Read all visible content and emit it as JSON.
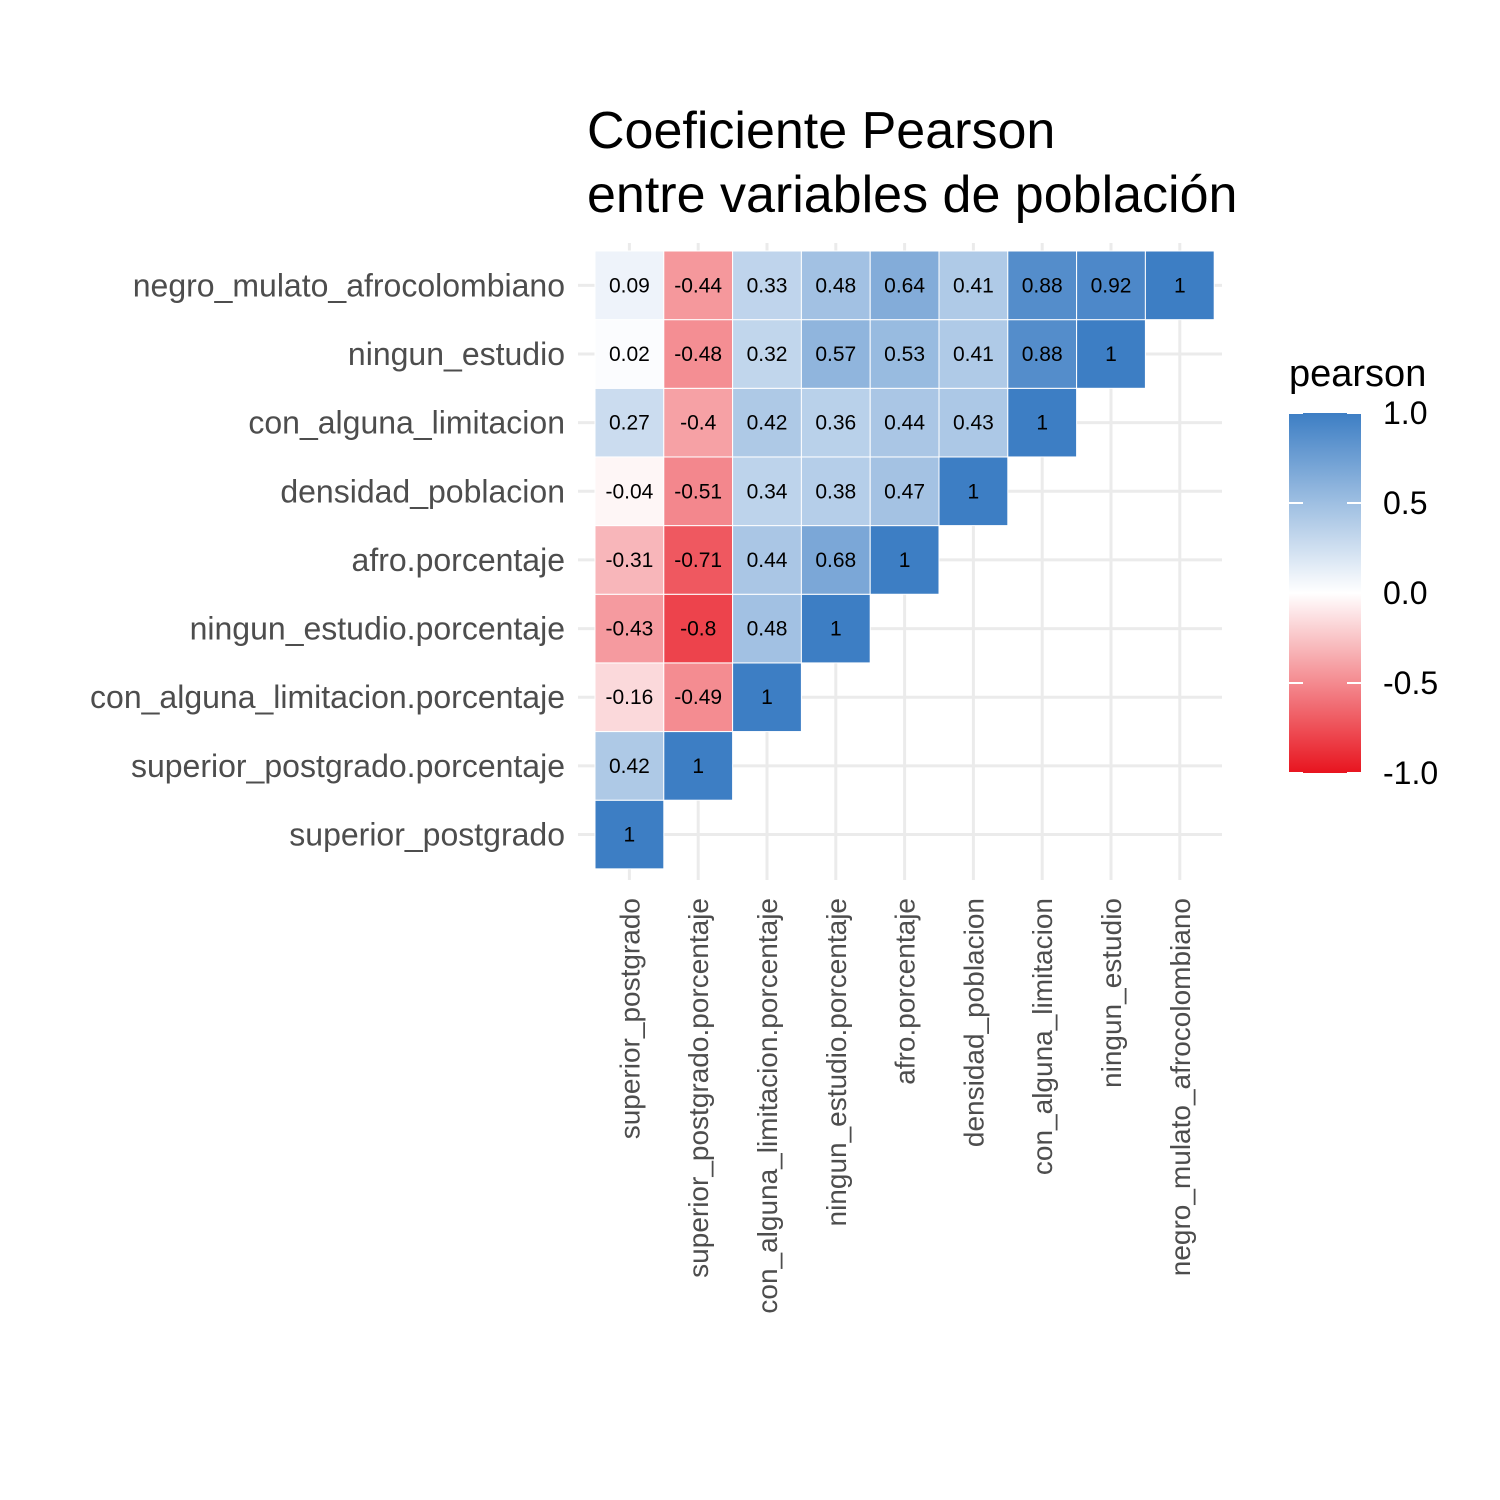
{
  "chart_data": {
    "type": "heatmap",
    "title_lines": [
      "Coeficiente Pearson",
      "entre variables de población"
    ],
    "x_categories": [
      "superior_postgrado",
      "superior_postgrado.porcentaje",
      "con_alguna_limitacion.porcentaje",
      "ningun_estudio.porcentaje",
      "afro.porcentaje",
      "densidad_poblacion",
      "con_alguna_limitacion",
      "ningun_estudio",
      "negro_mulato_afrocolombiano"
    ],
    "y_categories": [
      "superior_postgrado",
      "superior_postgrado.porcentaje",
      "con_alguna_limitacion.porcentaje",
      "ningun_estudio.porcentaje",
      "afro.porcentaje",
      "densidad_poblacion",
      "con_alguna_limitacion",
      "ningun_estudio",
      "negro_mulato_afrocolombiano"
    ],
    "cells": [
      {
        "x": "superior_postgrado",
        "y": "superior_postgrado",
        "value": 1,
        "label": "1"
      },
      {
        "x": "superior_postgrado",
        "y": "superior_postgrado.porcentaje",
        "value": 0.42,
        "label": "0.42"
      },
      {
        "x": "superior_postgrado.porcentaje",
        "y": "superior_postgrado.porcentaje",
        "value": 1,
        "label": "1"
      },
      {
        "x": "superior_postgrado",
        "y": "con_alguna_limitacion.porcentaje",
        "value": -0.16,
        "label": "-0.16"
      },
      {
        "x": "superior_postgrado.porcentaje",
        "y": "con_alguna_limitacion.porcentaje",
        "value": -0.49,
        "label": "-0.49"
      },
      {
        "x": "con_alguna_limitacion.porcentaje",
        "y": "con_alguna_limitacion.porcentaje",
        "value": 1,
        "label": "1"
      },
      {
        "x": "superior_postgrado",
        "y": "ningun_estudio.porcentaje",
        "value": -0.43,
        "label": "-0.43"
      },
      {
        "x": "superior_postgrado.porcentaje",
        "y": "ningun_estudio.porcentaje",
        "value": -0.8,
        "label": "-0.8"
      },
      {
        "x": "con_alguna_limitacion.porcentaje",
        "y": "ningun_estudio.porcentaje",
        "value": 0.48,
        "label": "0.48"
      },
      {
        "x": "ningun_estudio.porcentaje",
        "y": "ningun_estudio.porcentaje",
        "value": 1,
        "label": "1"
      },
      {
        "x": "superior_postgrado",
        "y": "afro.porcentaje",
        "value": -0.31,
        "label": "-0.31"
      },
      {
        "x": "superior_postgrado.porcentaje",
        "y": "afro.porcentaje",
        "value": -0.71,
        "label": "-0.71"
      },
      {
        "x": "con_alguna_limitacion.porcentaje",
        "y": "afro.porcentaje",
        "value": 0.44,
        "label": "0.44"
      },
      {
        "x": "ningun_estudio.porcentaje",
        "y": "afro.porcentaje",
        "value": 0.68,
        "label": "0.68"
      },
      {
        "x": "afro.porcentaje",
        "y": "afro.porcentaje",
        "value": 1,
        "label": "1"
      },
      {
        "x": "superior_postgrado",
        "y": "densidad_poblacion",
        "value": -0.04,
        "label": "-0.04"
      },
      {
        "x": "superior_postgrado.porcentaje",
        "y": "densidad_poblacion",
        "value": -0.51,
        "label": "-0.51"
      },
      {
        "x": "con_alguna_limitacion.porcentaje",
        "y": "densidad_poblacion",
        "value": 0.34,
        "label": "0.34"
      },
      {
        "x": "ningun_estudio.porcentaje",
        "y": "densidad_poblacion",
        "value": 0.38,
        "label": "0.38"
      },
      {
        "x": "afro.porcentaje",
        "y": "densidad_poblacion",
        "value": 0.47,
        "label": "0.47"
      },
      {
        "x": "densidad_poblacion",
        "y": "densidad_poblacion",
        "value": 1,
        "label": "1"
      },
      {
        "x": "superior_postgrado",
        "y": "con_alguna_limitacion",
        "value": 0.27,
        "label": "0.27"
      },
      {
        "x": "superior_postgrado.porcentaje",
        "y": "con_alguna_limitacion",
        "value": -0.4,
        "label": "-0.4"
      },
      {
        "x": "con_alguna_limitacion.porcentaje",
        "y": "con_alguna_limitacion",
        "value": 0.42,
        "label": "0.42"
      },
      {
        "x": "ningun_estudio.porcentaje",
        "y": "con_alguna_limitacion",
        "value": 0.36,
        "label": "0.36"
      },
      {
        "x": "afro.porcentaje",
        "y": "con_alguna_limitacion",
        "value": 0.44,
        "label": "0.44"
      },
      {
        "x": "densidad_poblacion",
        "y": "con_alguna_limitacion",
        "value": 0.43,
        "label": "0.43"
      },
      {
        "x": "con_alguna_limitacion",
        "y": "con_alguna_limitacion",
        "value": 1,
        "label": "1"
      },
      {
        "x": "superior_postgrado",
        "y": "ningun_estudio",
        "value": 0.02,
        "label": "0.02"
      },
      {
        "x": "superior_postgrado.porcentaje",
        "y": "ningun_estudio",
        "value": -0.48,
        "label": "-0.48"
      },
      {
        "x": "con_alguna_limitacion.porcentaje",
        "y": "ningun_estudio",
        "value": 0.32,
        "label": "0.32"
      },
      {
        "x": "ningun_estudio.porcentaje",
        "y": "ningun_estudio",
        "value": 0.57,
        "label": "0.57"
      },
      {
        "x": "afro.porcentaje",
        "y": "ningun_estudio",
        "value": 0.53,
        "label": "0.53"
      },
      {
        "x": "densidad_poblacion",
        "y": "ningun_estudio",
        "value": 0.41,
        "label": "0.41"
      },
      {
        "x": "con_alguna_limitacion",
        "y": "ningun_estudio",
        "value": 0.88,
        "label": "0.88"
      },
      {
        "x": "ningun_estudio",
        "y": "ningun_estudio",
        "value": 1,
        "label": "1"
      },
      {
        "x": "superior_postgrado",
        "y": "negro_mulato_afrocolombiano",
        "value": 0.09,
        "label": "0.09"
      },
      {
        "x": "superior_postgrado.porcentaje",
        "y": "negro_mulato_afrocolombiano",
        "value": -0.44,
        "label": "-0.44"
      },
      {
        "x": "con_alguna_limitacion.porcentaje",
        "y": "negro_mulato_afrocolombiano",
        "value": 0.33,
        "label": "0.33"
      },
      {
        "x": "ningun_estudio.porcentaje",
        "y": "negro_mulato_afrocolombiano",
        "value": 0.48,
        "label": "0.48"
      },
      {
        "x": "afro.porcentaje",
        "y": "negro_mulato_afrocolombiano",
        "value": 0.64,
        "label": "0.64"
      },
      {
        "x": "densidad_poblacion",
        "y": "negro_mulato_afrocolombiano",
        "value": 0.41,
        "label": "0.41"
      },
      {
        "x": "con_alguna_limitacion",
        "y": "negro_mulato_afrocolombiano",
        "value": 0.88,
        "label": "0.88"
      },
      {
        "x": "ningun_estudio",
        "y": "negro_mulato_afrocolombiano",
        "value": 0.92,
        "label": "0.92"
      },
      {
        "x": "negro_mulato_afrocolombiano",
        "y": "negro_mulato_afrocolombiano",
        "value": 1,
        "label": "1"
      }
    ],
    "legend": {
      "title": "pearson",
      "placement": "right",
      "range": [
        -1,
        1
      ],
      "breaks": [
        1,
        0.5,
        0,
        -0.5,
        -1
      ],
      "break_labels": [
        "1.0",
        "0.5",
        "0.0",
        "-0.5",
        "-1.0"
      ],
      "low_color": "#e8141f",
      "mid_color": "#ffffff",
      "high_color": "#3d7ec4"
    },
    "grid": true,
    "background": "#ffffff",
    "gridline_color": "#ebebeb"
  }
}
